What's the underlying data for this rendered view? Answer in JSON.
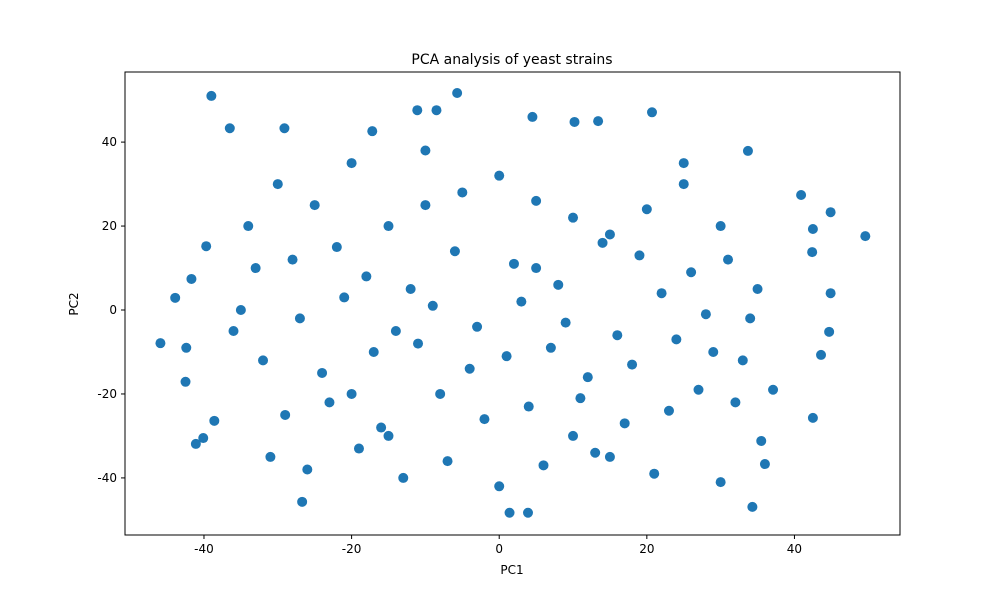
{
  "chart_data": {
    "type": "scatter",
    "title": "PCA analysis of yeast strains",
    "x_label": "PC1",
    "y_label": "PC2",
    "color": "#1f77b4",
    "xlim": [
      -50.7,
      54.3
    ],
    "ylim": [
      -53.6,
      56.7
    ],
    "xticks": [
      -40,
      -20,
      0,
      20,
      40
    ],
    "yticks": [
      -40,
      -20,
      0,
      20,
      40
    ],
    "x": [
      -39.0,
      -45.9,
      49.6,
      -5.7,
      1.4,
      3.9,
      34.3,
      -26.7,
      -36.5,
      20.7,
      10.2,
      -39.7,
      -41.7,
      -43.9,
      -42.4,
      -42.5,
      -41.1,
      -40.1,
      -38.6,
      40.9,
      44.9,
      42.5,
      42.4,
      44.9,
      44.7,
      43.6,
      42.5,
      37.1,
      35.5,
      36.0,
      33.7,
      -17.2,
      -11.1,
      -8.5,
      -29.1,
      13.4,
      4.5,
      -30,
      -25,
      -20,
      -15,
      -10,
      -5,
      0,
      5,
      10,
      15,
      20,
      25,
      30,
      -33,
      -28,
      -22,
      -18,
      -12,
      -6,
      2,
      8,
      14,
      19,
      26,
      31,
      -35,
      -27,
      -21,
      -14,
      -9,
      -3,
      3,
      9,
      16,
      22,
      28,
      34,
      -32,
      -24,
      -17,
      -11,
      -4,
      1,
      7,
      12,
      18,
      24,
      29,
      33,
      -29,
      -23,
      -16,
      -8,
      -2,
      4,
      11,
      17,
      23,
      27,
      32,
      -31,
      -26,
      -19,
      -13,
      -7,
      0,
      6,
      13,
      21,
      30,
      -34,
      -20,
      -10,
      10,
      25,
      -36,
      -15,
      5,
      15,
      35
    ],
    "y": [
      51.0,
      -7.9,
      17.6,
      51.7,
      -48.3,
      -48.3,
      -46.9,
      -45.7,
      43.3,
      47.1,
      44.8,
      15.2,
      7.4,
      2.9,
      -9.0,
      -17.1,
      -31.9,
      -30.5,
      -26.4,
      27.4,
      23.3,
      19.3,
      13.8,
      4.0,
      -5.2,
      -10.7,
      -25.7,
      -19.0,
      -31.2,
      -36.7,
      37.9,
      42.6,
      47.6,
      47.6,
      43.3,
      45.0,
      46.0,
      30,
      25,
      35,
      20,
      38,
      28,
      32,
      26,
      22,
      18,
      24,
      30,
      20,
      10,
      12,
      15,
      8,
      5,
      14,
      11,
      6,
      16,
      13,
      9,
      12,
      0,
      -2,
      3,
      -5,
      1,
      -4,
      2,
      -3,
      -6,
      4,
      -1,
      -2,
      -12,
      -15,
      -10,
      -8,
      -14,
      -11,
      -9,
      -16,
      -13,
      -7,
      -10,
      -12,
      -25,
      -22,
      -28,
      -20,
      -26,
      -23,
      -21,
      -27,
      -24,
      -19,
      -22,
      -35,
      -38,
      -33,
      -40,
      -36,
      -42,
      -37,
      -34,
      -39,
      -41,
      20,
      -20,
      25,
      -30,
      35,
      -5,
      -30,
      10,
      -35,
      5
    ]
  }
}
